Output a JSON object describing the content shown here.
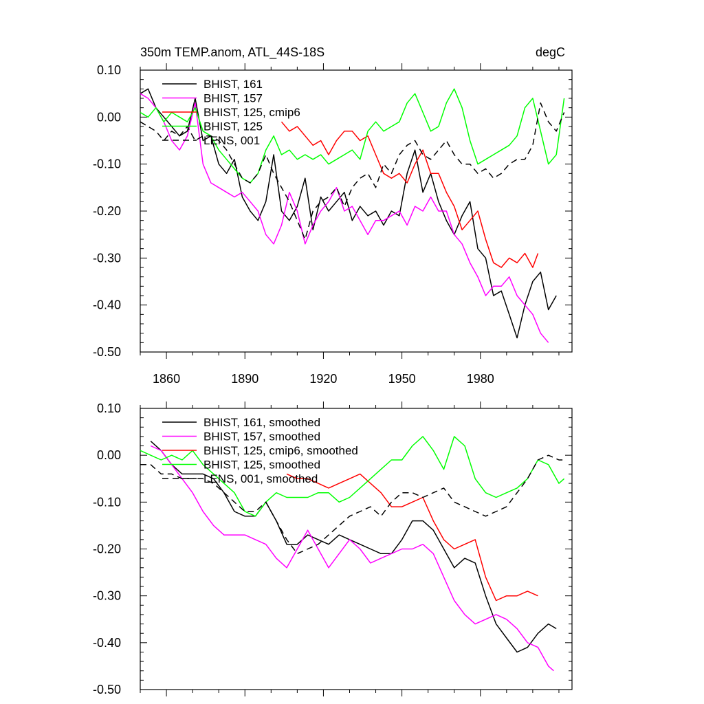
{
  "chart_data": [
    {
      "type": "line",
      "title": "350m TEMP.anom, ATL_44S-18S",
      "units": "degC",
      "xlabel": "",
      "ylabel": "",
      "xlim": [
        1850,
        2015
      ],
      "ylim": [
        -0.5,
        0.1
      ],
      "xticks": [
        1860,
        1890,
        1920,
        1950,
        1980
      ],
      "xtick_labels": [
        "1860",
        "1890",
        "1920",
        "1950",
        "1980"
      ],
      "yticks": [
        0.1,
        0.0,
        -0.1,
        -0.2,
        -0.3,
        -0.4,
        -0.5
      ],
      "ytick_labels": [
        "0.10",
        "0.00",
        "-0.10",
        "-0.20",
        "-0.30",
        "-0.40",
        "-0.50"
      ],
      "legend_position": "top-left",
      "series": [
        {
          "name": "BHIST, 161",
          "color": "#000000",
          "dash": "solid",
          "x": [
            1850,
            1853,
            1856,
            1859,
            1862,
            1865,
            1868,
            1871,
            1874,
            1877,
            1880,
            1883,
            1886,
            1889,
            1892,
            1895,
            1898,
            1901,
            1904,
            1907,
            1910,
            1913,
            1916,
            1919,
            1922,
            1925,
            1928,
            1931,
            1934,
            1937,
            1940,
            1943,
            1946,
            1949,
            1952,
            1955,
            1958,
            1961,
            1964,
            1967,
            1970,
            1973,
            1976,
            1979,
            1982,
            1985,
            1988,
            1991,
            1994,
            1997,
            2000,
            2003,
            2006,
            2009
          ],
          "y": [
            0.05,
            0.06,
            0.02,
            0.0,
            -0.02,
            -0.04,
            -0.03,
            0.04,
            -0.05,
            -0.04,
            -0.1,
            -0.12,
            -0.09,
            -0.17,
            -0.2,
            -0.22,
            -0.18,
            -0.08,
            -0.2,
            -0.22,
            -0.19,
            -0.13,
            -0.24,
            -0.17,
            -0.2,
            -0.18,
            -0.16,
            -0.22,
            -0.19,
            -0.21,
            -0.2,
            -0.23,
            -0.2,
            -0.21,
            -0.12,
            -0.07,
            -0.16,
            -0.12,
            -0.18,
            -0.22,
            -0.25,
            -0.21,
            -0.18,
            -0.28,
            -0.3,
            -0.38,
            -0.37,
            -0.42,
            -0.47,
            -0.4,
            -0.35,
            -0.33,
            -0.41,
            -0.38
          ]
        },
        {
          "name": "BHIST, 157",
          "color": "#ff00ff",
          "dash": "solid",
          "x": [
            1850,
            1853,
            1856,
            1859,
            1862,
            1865,
            1868,
            1871,
            1874,
            1877,
            1880,
            1883,
            1886,
            1889,
            1892,
            1895,
            1898,
            1901,
            1904,
            1907,
            1910,
            1913,
            1916,
            1919,
            1922,
            1925,
            1928,
            1931,
            1934,
            1937,
            1940,
            1943,
            1946,
            1949,
            1952,
            1955,
            1958,
            1961,
            1964,
            1967,
            1970,
            1973,
            1976,
            1979,
            1982,
            1985,
            1988,
            1991,
            1994,
            1997,
            2000,
            2003,
            2006
          ],
          "y": [
            0.05,
            0.04,
            0.02,
            -0.01,
            -0.05,
            -0.07,
            -0.04,
            0.03,
            -0.1,
            -0.14,
            -0.15,
            -0.16,
            -0.17,
            -0.16,
            -0.18,
            -0.2,
            -0.25,
            -0.27,
            -0.23,
            -0.16,
            -0.2,
            -0.27,
            -0.23,
            -0.2,
            -0.18,
            -0.15,
            -0.2,
            -0.19,
            -0.22,
            -0.25,
            -0.22,
            -0.22,
            -0.21,
            -0.2,
            -0.23,
            -0.19,
            -0.2,
            -0.17,
            -0.2,
            -0.2,
            -0.25,
            -0.27,
            -0.31,
            -0.34,
            -0.38,
            -0.36,
            -0.36,
            -0.34,
            -0.38,
            -0.4,
            -0.42,
            -0.46,
            -0.48
          ]
        },
        {
          "name": "BHIST, 125, cmip6",
          "color": "#ff0000",
          "dash": "solid",
          "x": [
            1904,
            1907,
            1910,
            1913,
            1916,
            1919,
            1922,
            1925,
            1928,
            1931,
            1934,
            1937,
            1940,
            1943,
            1946,
            1949,
            1952,
            1955,
            1958,
            1961,
            1964,
            1967,
            1970,
            1973,
            1976,
            1979,
            1982,
            1985,
            1988,
            1991,
            1994,
            1997,
            2000,
            2002
          ],
          "y": [
            -0.01,
            -0.03,
            -0.02,
            -0.04,
            -0.06,
            -0.05,
            -0.08,
            -0.05,
            -0.03,
            -0.03,
            -0.05,
            -0.04,
            -0.08,
            -0.12,
            -0.13,
            -0.12,
            -0.14,
            -0.1,
            -0.07,
            -0.12,
            -0.12,
            -0.16,
            -0.19,
            -0.24,
            -0.22,
            -0.2,
            -0.26,
            -0.31,
            -0.32,
            -0.3,
            -0.31,
            -0.29,
            -0.32,
            -0.29
          ]
        },
        {
          "name": "BHIST, 125",
          "color": "#00ff00",
          "dash": "solid",
          "x": [
            1850,
            1853,
            1856,
            1859,
            1862,
            1865,
            1868,
            1871,
            1874,
            1877,
            1880,
            1883,
            1886,
            1889,
            1892,
            1895,
            1898,
            1901,
            1904,
            1907,
            1910,
            1913,
            1916,
            1919,
            1922,
            1925,
            1928,
            1931,
            1934,
            1937,
            1940,
            1943,
            1946,
            1949,
            1952,
            1955,
            1958,
            1961,
            1964,
            1967,
            1970,
            1973,
            1976,
            1979,
            1982,
            1985,
            1988,
            1991,
            1994,
            1997,
            2000,
            2003,
            2006,
            2009,
            2012
          ],
          "y": [
            0.01,
            0.0,
            0.02,
            -0.01,
            0.01,
            0.0,
            -0.01,
            0.02,
            -0.03,
            -0.04,
            -0.07,
            -0.09,
            -0.11,
            -0.13,
            -0.14,
            -0.12,
            -0.07,
            -0.04,
            -0.08,
            -0.07,
            -0.09,
            -0.08,
            -0.09,
            -0.08,
            -0.1,
            -0.09,
            -0.08,
            -0.07,
            -0.09,
            -0.03,
            -0.01,
            -0.03,
            -0.02,
            -0.01,
            0.03,
            0.05,
            0.01,
            -0.03,
            -0.02,
            0.03,
            0.06,
            0.02,
            -0.05,
            -0.1,
            -0.09,
            -0.08,
            -0.07,
            -0.06,
            -0.04,
            0.02,
            0.04,
            -0.03,
            -0.1,
            -0.08,
            0.04
          ]
        },
        {
          "name": "LENS, 001",
          "color": "#000000",
          "dash": "dashed",
          "x": [
            1850,
            1853,
            1856,
            1859,
            1862,
            1865,
            1868,
            1871,
            1874,
            1877,
            1880,
            1883,
            1886,
            1889,
            1892,
            1895,
            1898,
            1901,
            1904,
            1907,
            1910,
            1913,
            1916,
            1919,
            1922,
            1925,
            1928,
            1931,
            1934,
            1937,
            1940,
            1943,
            1946,
            1949,
            1952,
            1955,
            1958,
            1961,
            1964,
            1967,
            1970,
            1973,
            1976,
            1979,
            1982,
            1985,
            1988,
            1991,
            1994,
            1997,
            2000,
            2003,
            2006,
            2009,
            2012
          ],
          "y": [
            -0.01,
            -0.02,
            -0.03,
            -0.05,
            -0.03,
            -0.04,
            -0.02,
            -0.05,
            -0.04,
            -0.04,
            -0.05,
            -0.07,
            -0.1,
            -0.13,
            -0.14,
            -0.12,
            -0.08,
            -0.12,
            -0.15,
            -0.18,
            -0.22,
            -0.26,
            -0.2,
            -0.18,
            -0.17,
            -0.15,
            -0.19,
            -0.15,
            -0.13,
            -0.12,
            -0.15,
            -0.1,
            -0.12,
            -0.08,
            -0.06,
            -0.05,
            -0.08,
            -0.09,
            -0.07,
            -0.05,
            -0.08,
            -0.1,
            -0.1,
            -0.12,
            -0.11,
            -0.13,
            -0.12,
            -0.1,
            -0.09,
            -0.09,
            -0.06,
            0.03,
            -0.01,
            -0.03,
            0.01
          ]
        }
      ]
    },
    {
      "type": "line",
      "title": "",
      "units": "",
      "xlabel": "",
      "ylabel": "",
      "xlim": [
        1850,
        2015
      ],
      "ylim": [
        -0.5,
        0.1
      ],
      "xticks": [
        1860,
        1890,
        1920,
        1950,
        1980
      ],
      "xtick_labels": [],
      "yticks": [
        0.1,
        0.0,
        -0.1,
        -0.2,
        -0.3,
        -0.4,
        -0.5
      ],
      "ytick_labels": [
        "0.10",
        "0.00",
        "-0.10",
        "-0.20",
        "-0.30",
        "-0.40",
        "-0.50"
      ],
      "legend_position": "top-left",
      "series": [
        {
          "name": "BHIST, 161, smoothed",
          "color": "#000000",
          "dash": "solid",
          "x": [
            1854,
            1858,
            1862,
            1866,
            1870,
            1874,
            1878,
            1882,
            1886,
            1890,
            1894,
            1898,
            1902,
            1906,
            1910,
            1914,
            1918,
            1922,
            1926,
            1930,
            1934,
            1938,
            1942,
            1946,
            1950,
            1954,
            1958,
            1962,
            1966,
            1970,
            1974,
            1978,
            1982,
            1986,
            1990,
            1994,
            1998,
            2002,
            2006,
            2009
          ],
          "y": [
            0.03,
            0.01,
            -0.02,
            -0.04,
            -0.04,
            -0.04,
            -0.05,
            -0.08,
            -0.12,
            -0.13,
            -0.13,
            -0.1,
            -0.14,
            -0.19,
            -0.19,
            -0.17,
            -0.18,
            -0.19,
            -0.17,
            -0.18,
            -0.19,
            -0.2,
            -0.21,
            -0.21,
            -0.18,
            -0.14,
            -0.14,
            -0.16,
            -0.2,
            -0.24,
            -0.22,
            -0.23,
            -0.3,
            -0.36,
            -0.39,
            -0.42,
            -0.41,
            -0.38,
            -0.36,
            -0.37
          ]
        },
        {
          "name": "BHIST, 157, smoothed",
          "color": "#ff00ff",
          "dash": "solid",
          "x": [
            1854,
            1858,
            1862,
            1866,
            1870,
            1874,
            1878,
            1882,
            1886,
            1890,
            1894,
            1898,
            1902,
            1906,
            1910,
            1914,
            1918,
            1922,
            1926,
            1930,
            1934,
            1938,
            1942,
            1946,
            1950,
            1954,
            1958,
            1962,
            1966,
            1970,
            1974,
            1978,
            1982,
            1986,
            1990,
            1994,
            1998,
            2002,
            2006,
            2008
          ],
          "y": [
            0.02,
            0.01,
            -0.02,
            -0.05,
            -0.08,
            -0.12,
            -0.15,
            -0.17,
            -0.17,
            -0.17,
            -0.18,
            -0.19,
            -0.22,
            -0.24,
            -0.2,
            -0.16,
            -0.2,
            -0.24,
            -0.21,
            -0.18,
            -0.2,
            -0.23,
            -0.22,
            -0.21,
            -0.2,
            -0.2,
            -0.19,
            -0.21,
            -0.26,
            -0.31,
            -0.34,
            -0.36,
            -0.35,
            -0.34,
            -0.35,
            -0.37,
            -0.4,
            -0.41,
            -0.45,
            -0.46
          ]
        },
        {
          "name": "BHIST, 125, cmip6, smoothed",
          "color": "#ff0000",
          "dash": "solid",
          "x": [
            1906,
            1910,
            1914,
            1918,
            1922,
            1926,
            1930,
            1934,
            1938,
            1942,
            1946,
            1950,
            1954,
            1958,
            1962,
            1966,
            1970,
            1974,
            1978,
            1982,
            1986,
            1990,
            1994,
            1998,
            2002
          ],
          "y": [
            -0.04,
            -0.05,
            -0.05,
            -0.06,
            -0.07,
            -0.06,
            -0.05,
            -0.04,
            -0.06,
            -0.08,
            -0.11,
            -0.11,
            -0.1,
            -0.09,
            -0.14,
            -0.18,
            -0.2,
            -0.19,
            -0.18,
            -0.26,
            -0.31,
            -0.3,
            -0.3,
            -0.29,
            -0.3
          ]
        },
        {
          "name": "BHIST, 125, smoothed",
          "color": "#00ff00",
          "dash": "solid",
          "x": [
            1850,
            1854,
            1858,
            1862,
            1866,
            1870,
            1874,
            1878,
            1882,
            1886,
            1890,
            1894,
            1898,
            1902,
            1906,
            1910,
            1914,
            1918,
            1922,
            1926,
            1930,
            1934,
            1938,
            1942,
            1946,
            1950,
            1954,
            1958,
            1962,
            1966,
            1970,
            1974,
            1978,
            1982,
            1986,
            1990,
            1994,
            1998,
            2002,
            2006,
            2010,
            2012
          ],
          "y": [
            0.01,
            0.0,
            -0.01,
            0.0,
            -0.01,
            0.01,
            -0.02,
            -0.04,
            -0.06,
            -0.08,
            -0.12,
            -0.13,
            -0.1,
            -0.08,
            -0.09,
            -0.09,
            -0.09,
            -0.08,
            -0.08,
            -0.1,
            -0.09,
            -0.07,
            -0.05,
            -0.03,
            -0.01,
            -0.01,
            0.02,
            0.04,
            0.01,
            -0.03,
            0.04,
            0.02,
            -0.05,
            -0.08,
            -0.09,
            -0.08,
            -0.07,
            -0.05,
            -0.01,
            -0.02,
            -0.06,
            -0.05
          ]
        },
        {
          "name": "LENS, 001, smoothed",
          "color": "#000000",
          "dash": "dashed",
          "x": [
            1850,
            1854,
            1858,
            1862,
            1866,
            1870,
            1874,
            1878,
            1882,
            1886,
            1890,
            1894,
            1898,
            1902,
            1906,
            1910,
            1914,
            1918,
            1922,
            1926,
            1930,
            1934,
            1938,
            1942,
            1946,
            1950,
            1954,
            1958,
            1962,
            1966,
            1970,
            1974,
            1978,
            1982,
            1986,
            1990,
            1994,
            1998,
            2002,
            2006,
            2010,
            2012
          ],
          "y": [
            -0.02,
            -0.02,
            -0.04,
            -0.04,
            -0.05,
            -0.05,
            -0.05,
            -0.06,
            -0.08,
            -0.1,
            -0.12,
            -0.12,
            -0.1,
            -0.14,
            -0.18,
            -0.21,
            -0.2,
            -0.19,
            -0.17,
            -0.15,
            -0.13,
            -0.12,
            -0.11,
            -0.13,
            -0.1,
            -0.08,
            -0.08,
            -0.09,
            -0.08,
            -0.07,
            -0.1,
            -0.11,
            -0.12,
            -0.13,
            -0.12,
            -0.11,
            -0.08,
            -0.05,
            -0.01,
            0.0,
            -0.01,
            -0.01
          ]
        }
      ]
    }
  ]
}
